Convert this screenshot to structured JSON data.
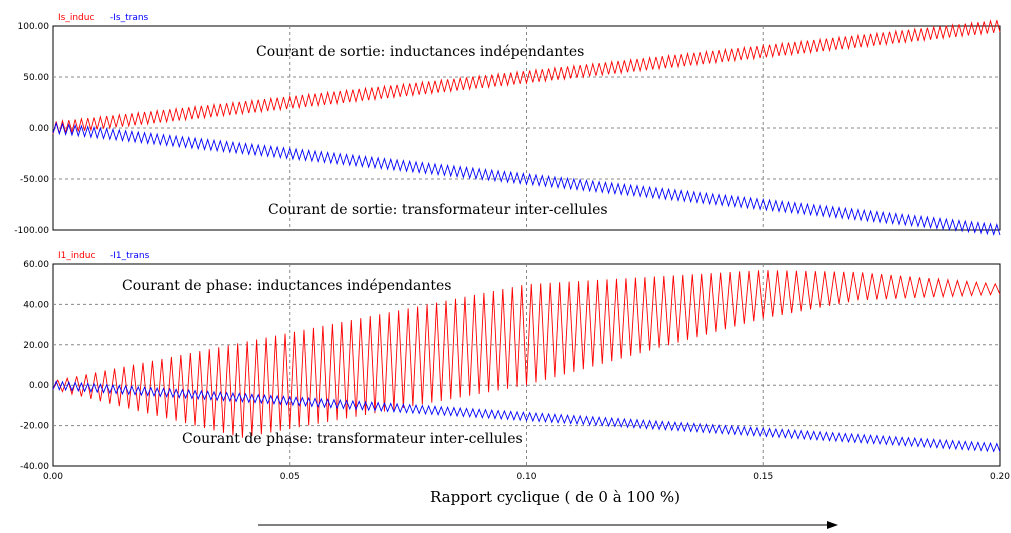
{
  "chart_data": [
    {
      "type": "line",
      "legend_placement": "top-left",
      "series": [
        {
          "name": "Is_induc",
          "color": "#ff0000",
          "mean_x": [
            0.0,
            0.2
          ],
          "mean_y": [
            0,
            100
          ],
          "ripple_peak_to_peak": 12,
          "oscillation_count": 150
        },
        {
          "name": "-Is_trans",
          "color": "#0000ff",
          "mean_x": [
            0.0,
            0.2
          ],
          "mean_y": [
            0,
            -100
          ],
          "ripple_peak_to_peak": 10,
          "oscillation_count": 150
        }
      ],
      "xlim": [
        0.0,
        0.2
      ],
      "ylim": [
        -100,
        100
      ],
      "yticks": [
        100,
        50,
        0,
        -50,
        -100
      ],
      "ytick_labels": [
        "100.00",
        "50.00",
        "0.00",
        "-50.00",
        "-100.00"
      ],
      "grid": true,
      "annotations": [
        {
          "text": "Courant de sortie: inductances indépendantes",
          "series": "Is_induc"
        },
        {
          "text": "Courant de sortie: transformateur inter-cellules",
          "series": "-Is_trans"
        }
      ]
    },
    {
      "type": "line",
      "legend_placement": "top-left",
      "series": [
        {
          "name": "I1_induc",
          "color": "#ff0000",
          "mean_x": [
            0.0,
            0.2
          ],
          "mean_y": [
            0,
            48
          ],
          "envelope_upper": [
            [
              0.0,
              2
            ],
            [
              0.1,
              50
            ],
            [
              0.15,
              57
            ],
            [
              0.17,
              56
            ],
            [
              0.2,
              50
            ]
          ],
          "envelope_lower": [
            [
              0.0,
              -2
            ],
            [
              0.04,
              -26
            ],
            [
              0.1,
              0
            ],
            [
              0.15,
              33
            ],
            [
              0.17,
              42
            ],
            [
              0.2,
              45
            ]
          ],
          "oscillation_count": 100
        },
        {
          "name": "-I1_trans",
          "color": "#0000ff",
          "mean_x": [
            0.0,
            0.2
          ],
          "mean_y": [
            0,
            -31
          ],
          "ripple_peak_to_peak": 4,
          "oscillation_count": 150
        }
      ],
      "xlim": [
        0.0,
        0.2
      ],
      "ylim": [
        -40,
        60
      ],
      "yticks": [
        60,
        40,
        20,
        0,
        -20,
        -40
      ],
      "ytick_labels": [
        "60.00",
        "40.00",
        "20.00",
        "0.00",
        "-20.00",
        "-40.00"
      ],
      "xticks": [
        0.0,
        0.05,
        0.1,
        0.15,
        0.2
      ],
      "xtick_labels": [
        "0.00",
        "0.05",
        "0.10",
        "0.15",
        "0.20"
      ],
      "xlabel": "Rapport cyclique ( de 0  à 100 %)",
      "grid": true,
      "annotations": [
        {
          "text": "Courant de phase: inductances indépendantes",
          "series": "I1_induc"
        },
        {
          "text": "Courant de phase: transformateur inter-cellules",
          "series": "-I1_trans"
        }
      ]
    }
  ]
}
